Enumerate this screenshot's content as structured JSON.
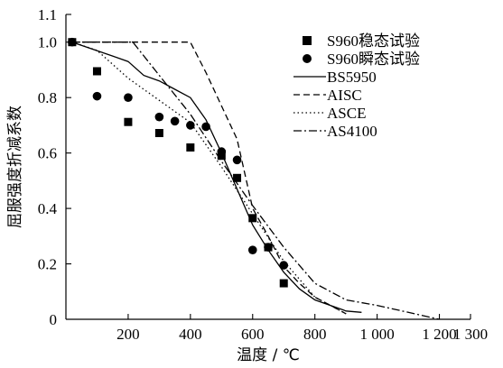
{
  "chart_data": {
    "type": "scatter",
    "xlabel": "温度 / ℃",
    "ylabel": "屈服强度折减系数",
    "xlim": [
      0,
      1300
    ],
    "ylim": [
      0,
      1.1
    ],
    "x_ticks": [
      {
        "value": 200,
        "label": "200"
      },
      {
        "value": 400,
        "label": "400"
      },
      {
        "value": 600,
        "label": "600"
      },
      {
        "value": 800,
        "label": "800"
      },
      {
        "value": 1000,
        "label": "1 000"
      },
      {
        "value": 1200,
        "label": "1 200"
      },
      {
        "value": 1300,
        "label": "1 300"
      }
    ],
    "y_ticks": [
      {
        "value": 0,
        "label": "0"
      },
      {
        "value": 0.2,
        "label": "0.2"
      },
      {
        "value": 0.4,
        "label": "0.4"
      },
      {
        "value": 0.6,
        "label": "0.6"
      },
      {
        "value": 0.8,
        "label": "0.8"
      },
      {
        "value": 1.0,
        "label": "1.0"
      },
      {
        "value": 1.1,
        "label": "1.1"
      }
    ],
    "legend_position": "top-right",
    "grid": false,
    "series": [
      {
        "name": "S960稳态试验",
        "kind": "marker",
        "marker": "square",
        "x": [
          20,
          100,
          200,
          300,
          400,
          500,
          550,
          600,
          650,
          700
        ],
        "y": [
          1.0,
          0.895,
          0.712,
          0.672,
          0.62,
          0.59,
          0.51,
          0.365,
          0.26,
          0.13
        ]
      },
      {
        "name": "S960瞬态试验",
        "kind": "marker",
        "marker": "circle",
        "x": [
          20,
          100,
          200,
          300,
          350,
          400,
          450,
          500,
          550,
          600,
          650,
          700
        ],
        "y": [
          1.0,
          0.805,
          0.8,
          0.73,
          0.715,
          0.7,
          0.695,
          0.605,
          0.575,
          0.25,
          0.26,
          0.195
        ]
      },
      {
        "name": "BS5950",
        "kind": "line",
        "dash": "solid",
        "x": [
          20,
          150,
          200,
          250,
          300,
          350,
          400,
          450,
          500,
          550,
          600,
          650,
          700,
          750,
          800,
          850,
          900,
          950
        ],
        "y": [
          1.0,
          0.95,
          0.93,
          0.88,
          0.86,
          0.83,
          0.8,
          0.72,
          0.6,
          0.47,
          0.34,
          0.25,
          0.17,
          0.11,
          0.07,
          0.05,
          0.03,
          0.025
        ]
      },
      {
        "name": "AISC",
        "kind": "line",
        "dash": "dashed",
        "x": [
          20,
          400,
          450,
          500,
          550,
          600,
          650,
          700,
          750,
          800,
          850,
          900
        ],
        "y": [
          1.0,
          1.0,
          0.89,
          0.77,
          0.65,
          0.4,
          0.3,
          0.19,
          0.13,
          0.08,
          0.05,
          0.02
        ]
      },
      {
        "name": "ASCE",
        "kind": "line",
        "dash": "dotted",
        "x": [
          20,
          100,
          200,
          300,
          400,
          500,
          600,
          700,
          800,
          900
        ],
        "y": [
          1.0,
          0.97,
          0.87,
          0.79,
          0.71,
          0.55,
          0.38,
          0.21,
          0.08,
          0.02
        ]
      },
      {
        "name": "AS4100",
        "kind": "line",
        "dash": "dashdot",
        "x": [
          20,
          215,
          300,
          400,
          500,
          600,
          700,
          800,
          900,
          1000,
          1100,
          1200
        ],
        "y": [
          1.0,
          1.0,
          0.88,
          0.74,
          0.57,
          0.41,
          0.26,
          0.13,
          0.07,
          0.05,
          0.025,
          0.0
        ]
      }
    ]
  }
}
